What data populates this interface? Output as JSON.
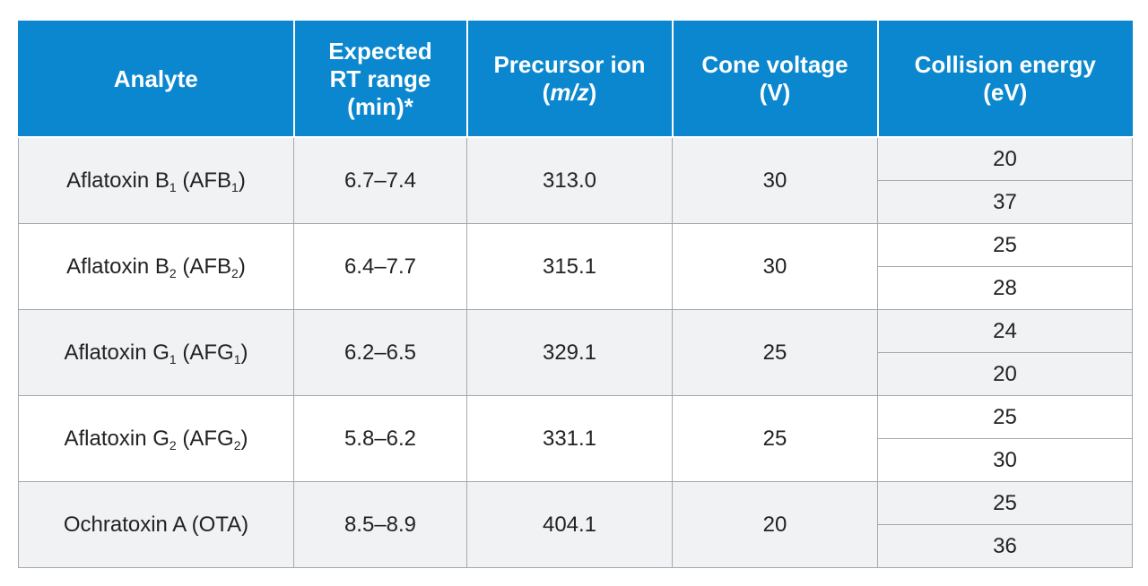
{
  "table": {
    "headers": {
      "analyte": "Analyte",
      "rt_line1": "Expected",
      "rt_line2": "RT range",
      "rt_line3": "(min)*",
      "precursor_line1": "Precursor ion",
      "precursor_open": "(",
      "precursor_italic": "m/z",
      "precursor_close": ")",
      "cone_line1": "Cone voltage",
      "cone_line2": "(V)",
      "ce_line1": "Collision energy",
      "ce_line2": "(eV)"
    },
    "rows": [
      {
        "analyte_pre": "Aflatoxin B",
        "analyte_sub1": "1",
        "analyte_mid": " (AFB",
        "analyte_sub2": "1",
        "analyte_post": ")",
        "rt": "6.7–7.4",
        "precursor": "313.0",
        "cone": "30",
        "ce": [
          "20",
          "37"
        ]
      },
      {
        "analyte_pre": "Aflatoxin B",
        "analyte_sub1": "2",
        "analyte_mid": " (AFB",
        "analyte_sub2": "2",
        "analyte_post": ")",
        "rt": "6.4–7.7",
        "precursor": "315.1",
        "cone": "30",
        "ce": [
          "25",
          "28"
        ]
      },
      {
        "analyte_pre": "Aflatoxin G",
        "analyte_sub1": "1",
        "analyte_mid": " (AFG",
        "analyte_sub2": "1",
        "analyte_post": ")",
        "rt": "6.2–6.5",
        "precursor": "329.1",
        "cone": "25",
        "ce": [
          "24",
          "20"
        ]
      },
      {
        "analyte_pre": "Aflatoxin G",
        "analyte_sub1": "2",
        "analyte_mid": " (AFG",
        "analyte_sub2": "2",
        "analyte_post": ")",
        "rt": "5.8–6.2",
        "precursor": "331.1",
        "cone": "25",
        "ce": [
          "25",
          "30"
        ]
      },
      {
        "analyte_pre": "Ochratoxin A (OTA)",
        "analyte_sub1": "",
        "analyte_mid": "",
        "analyte_sub2": "",
        "analyte_post": "",
        "rt": "8.5–8.9",
        "precursor": "404.1",
        "cone": "20",
        "ce": [
          "25",
          "36"
        ]
      }
    ]
  },
  "colors": {
    "header_bg": "#0a87cf",
    "row_shade": "#f1f2f4",
    "row_white": "#ffffff",
    "grid_line": "#a6a8ab"
  }
}
